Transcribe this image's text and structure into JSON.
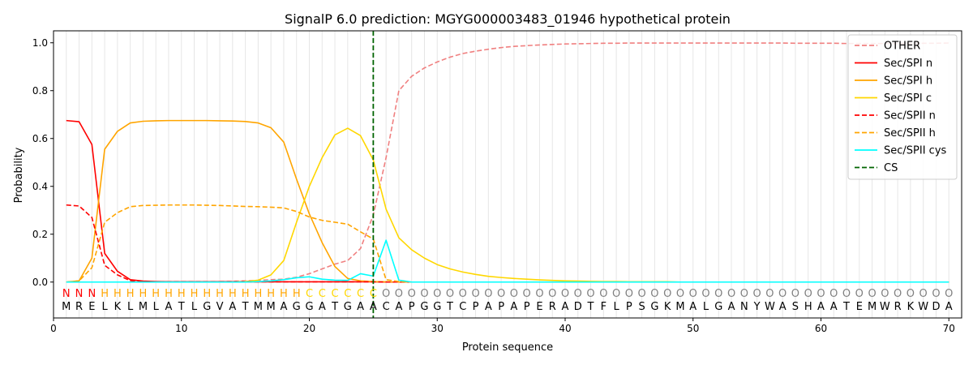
{
  "chart_data": {
    "type": "line",
    "title": "SignalP 6.0 prediction: MGYG000003483_01946 hypothetical protein",
    "xlabel": "Protein sequence",
    "ylabel": "Probability",
    "xlim": [
      0,
      71
    ],
    "ylim": [
      -0.15,
      1.05
    ],
    "xticks": [
      0,
      10,
      20,
      30,
      40,
      50,
      60,
      70
    ],
    "yticks": [
      0.0,
      0.2,
      0.4,
      0.6,
      0.8,
      1.0
    ],
    "grid": "vertical lines at each residue",
    "legend_position": "top-right",
    "sequence": [
      "M",
      "R",
      "E",
      "L",
      "K",
      "L",
      "M",
      "L",
      "A",
      "T",
      "L",
      "G",
      "V",
      "A",
      "T",
      "M",
      "M",
      "A",
      "G",
      "G",
      "A",
      "T",
      "G",
      "A",
      "A",
      "C",
      "A",
      "P",
      "G",
      "G",
      "T",
      "C",
      "P",
      "A",
      "P",
      "A",
      "P",
      "E",
      "R",
      "A",
      "D",
      "T",
      "F",
      "L",
      "P",
      "S",
      "G",
      "K",
      "M",
      "A",
      "L",
      "G",
      "A",
      "N",
      "Y",
      "W",
      "A",
      "S",
      "H",
      "A",
      "A",
      "T",
      "E",
      "M",
      "W",
      "R",
      "K",
      "W",
      "D",
      "A"
    ],
    "labels": [
      "N",
      "N",
      "N",
      "H",
      "H",
      "H",
      "H",
      "H",
      "H",
      "H",
      "H",
      "H",
      "H",
      "H",
      "H",
      "H",
      "H",
      "H",
      "H",
      "C",
      "C",
      "C",
      "C",
      "C",
      "C",
      "O",
      "O",
      "O",
      "O",
      "O",
      "O",
      "O",
      "O",
      "O",
      "O",
      "O",
      "O",
      "O",
      "O",
      "O",
      "O",
      "O",
      "O",
      "O",
      "O",
      "O",
      "O",
      "O",
      "O",
      "O",
      "O",
      "O",
      "O",
      "O",
      "O",
      "O",
      "O",
      "O",
      "O",
      "O",
      "O",
      "O",
      "O",
      "O",
      "O",
      "O",
      "O",
      "O",
      "O",
      "O"
    ],
    "label_colors": {
      "N": "#ff0000",
      "H": "#ffa500",
      "C": "#ffd700",
      "O": "#808080"
    },
    "cs_position": 25,
    "series": [
      {
        "name": "OTHER",
        "color": "#f08080",
        "dash": true,
        "values": [
          0.0,
          0.0,
          0.0,
          0.0,
          0.0,
          0.0,
          0.0,
          0.0,
          0.0,
          0.0,
          0.0,
          0.0,
          0.002,
          0.003,
          0.005,
          0.007,
          0.01,
          0.012,
          0.02,
          0.035,
          0.055,
          0.075,
          0.09,
          0.14,
          0.28,
          0.52,
          0.8,
          0.86,
          0.895,
          0.92,
          0.94,
          0.955,
          0.965,
          0.973,
          0.98,
          0.985,
          0.988,
          0.991,
          0.993,
          0.995,
          0.996,
          0.997,
          0.998,
          0.998,
          0.999,
          0.999,
          0.999,
          0.999,
          0.999,
          0.999,
          0.999,
          0.999,
          0.999,
          0.999,
          0.999,
          0.999,
          0.999,
          0.998,
          0.998,
          0.998,
          0.998,
          0.997,
          0.997,
          0.997,
          0.997,
          0.997,
          0.997,
          0.998,
          0.998,
          0.999
        ]
      },
      {
        "name": "Sec/SPI n",
        "color": "#ff0000",
        "dash": false,
        "values": [
          0.675,
          0.67,
          0.575,
          0.12,
          0.045,
          0.01,
          0.004,
          0.002,
          0.001,
          0.001,
          0.001,
          0.001,
          0.001,
          0.001,
          0.001,
          0.001,
          0.001,
          0.001,
          0.001,
          0.001,
          0.001,
          0.001,
          0.001,
          0.001,
          0.001,
          0.0,
          0.0,
          0.0,
          0.0,
          0.0,
          0.0,
          0.0,
          0.0,
          0.0,
          0.0,
          0.0,
          0.0,
          0.0,
          0.0,
          0.0,
          0.0,
          0.0,
          0.0,
          0.0,
          0.0,
          0.0,
          0.0,
          0.0,
          0.0,
          0.0,
          0.0,
          0.0,
          0.0,
          0.0,
          0.0,
          0.0,
          0.0,
          0.0,
          0.0,
          0.0,
          0.0,
          0.0,
          0.0,
          0.0,
          0.0,
          0.0,
          0.0,
          0.0,
          0.0,
          0.0
        ]
      },
      {
        "name": "Sec/SPI h",
        "color": "#ffa500",
        "dash": false,
        "values": [
          0.0,
          0.005,
          0.1,
          0.555,
          0.63,
          0.665,
          0.672,
          0.674,
          0.675,
          0.675,
          0.675,
          0.675,
          0.674,
          0.673,
          0.671,
          0.665,
          0.645,
          0.585,
          0.43,
          0.285,
          0.165,
          0.065,
          0.015,
          0.005,
          0.002,
          0.001,
          0.0,
          0.0,
          0.0,
          0.0,
          0.0,
          0.0,
          0.0,
          0.0,
          0.0,
          0.0,
          0.0,
          0.0,
          0.0,
          0.0,
          0.0,
          0.0,
          0.0,
          0.0,
          0.0,
          0.0,
          0.0,
          0.0,
          0.0,
          0.0,
          0.0,
          0.0,
          0.0,
          0.0,
          0.0,
          0.0,
          0.0,
          0.0,
          0.0,
          0.0,
          0.0,
          0.0,
          0.0,
          0.0,
          0.0,
          0.0,
          0.0,
          0.0,
          0.0,
          0.0
        ]
      },
      {
        "name": "Sec/SPI c",
        "color": "#ffd700",
        "dash": false,
        "values": [
          0.0,
          0.0,
          0.0,
          0.0,
          0.0,
          0.0,
          0.0,
          0.0,
          0.0,
          0.0,
          0.0,
          0.0,
          0.0,
          0.0,
          0.002,
          0.008,
          0.03,
          0.09,
          0.25,
          0.4,
          0.52,
          0.615,
          0.643,
          0.612,
          0.51,
          0.305,
          0.185,
          0.135,
          0.1,
          0.073,
          0.055,
          0.042,
          0.032,
          0.024,
          0.019,
          0.015,
          0.012,
          0.009,
          0.007,
          0.005,
          0.004,
          0.003,
          0.002,
          0.002,
          0.001,
          0.001,
          0.001,
          0.001,
          0.0,
          0.0,
          0.0,
          0.0,
          0.0,
          0.0,
          0.0,
          0.0,
          0.0,
          0.0,
          0.0,
          0.0,
          0.0,
          0.0,
          0.0,
          0.0,
          0.0,
          0.0,
          0.0,
          0.0,
          0.0,
          0.0
        ]
      },
      {
        "name": "Sec/SPII n",
        "color": "#ff0000",
        "dash": true,
        "values": [
          0.322,
          0.318,
          0.27,
          0.07,
          0.03,
          0.006,
          0.002,
          0.001,
          0.001,
          0.001,
          0.001,
          0.001,
          0.001,
          0.001,
          0.001,
          0.001,
          0.001,
          0.001,
          0.001,
          0.001,
          0.001,
          0.001,
          0.001,
          0.001,
          0.001,
          0.0,
          0.0,
          0.0,
          0.0,
          0.0,
          0.0,
          0.0,
          0.0,
          0.0,
          0.0,
          0.0,
          0.0,
          0.0,
          0.0,
          0.0,
          0.0,
          0.0,
          0.0,
          0.0,
          0.0,
          0.0,
          0.0,
          0.0,
          0.0,
          0.0,
          0.0,
          0.0,
          0.0,
          0.0,
          0.0,
          0.0,
          0.0,
          0.0,
          0.0,
          0.0,
          0.0,
          0.0,
          0.0,
          0.0,
          0.0,
          0.0,
          0.0,
          0.0,
          0.0,
          0.0
        ]
      },
      {
        "name": "Sec/SPII h",
        "color": "#ffa500",
        "dash": true,
        "values": [
          0.0,
          0.005,
          0.06,
          0.25,
          0.29,
          0.315,
          0.32,
          0.321,
          0.322,
          0.322,
          0.322,
          0.321,
          0.32,
          0.318,
          0.316,
          0.315,
          0.313,
          0.31,
          0.295,
          0.272,
          0.258,
          0.25,
          0.242,
          0.21,
          0.18,
          0.01,
          0.002,
          0.0,
          0.0,
          0.0,
          0.0,
          0.0,
          0.0,
          0.0,
          0.0,
          0.0,
          0.0,
          0.0,
          0.0,
          0.0,
          0.0,
          0.0,
          0.0,
          0.0,
          0.0,
          0.0,
          0.0,
          0.0,
          0.0,
          0.0,
          0.0,
          0.0,
          0.0,
          0.0,
          0.0,
          0.0,
          0.0,
          0.0,
          0.0,
          0.0,
          0.0,
          0.0,
          0.0,
          0.0,
          0.0,
          0.0,
          0.0,
          0.0,
          0.0,
          0.0
        ]
      },
      {
        "name": "Sec/SPII cys",
        "color": "#00ffff",
        "dash": false,
        "values": [
          0.0,
          0.0,
          0.0,
          0.0,
          0.0,
          0.0,
          0.0,
          0.0,
          0.0,
          0.0,
          0.0,
          0.0,
          0.0,
          0.0,
          0.0,
          0.002,
          0.005,
          0.01,
          0.018,
          0.022,
          0.012,
          0.008,
          0.007,
          0.035,
          0.025,
          0.175,
          0.008,
          0.0,
          0.0,
          0.0,
          0.0,
          0.0,
          0.0,
          0.0,
          0.0,
          0.0,
          0.0,
          0.0,
          0.0,
          0.0,
          0.0,
          0.0,
          0.0,
          0.0,
          0.0,
          0.0,
          0.0,
          0.0,
          0.0,
          0.0,
          0.0,
          0.0,
          0.0,
          0.0,
          0.0,
          0.0,
          0.0,
          0.0,
          0.0,
          0.0,
          0.0,
          0.0,
          0.0,
          0.0,
          0.0,
          0.0,
          0.0,
          0.0,
          0.0,
          0.0
        ]
      }
    ],
    "cs_legend": {
      "name": "CS",
      "color": "#006400"
    }
  }
}
